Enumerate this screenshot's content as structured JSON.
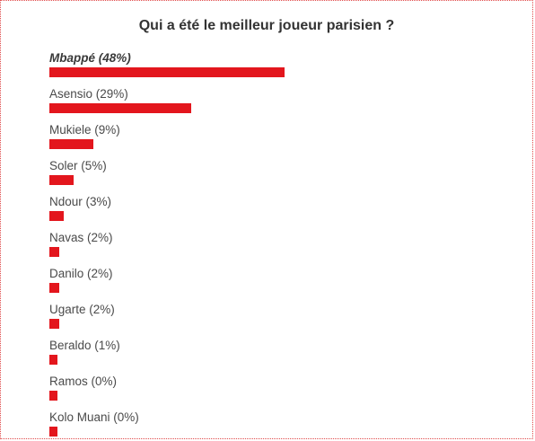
{
  "poll": {
    "title": "Qui a été le meilleur joueur parisien ?",
    "bar_color": "#e3161d",
    "options": [
      {
        "label": "Mbappé (48%)",
        "percent": 48,
        "leader": true
      },
      {
        "label": "Asensio (29%)",
        "percent": 29,
        "leader": false
      },
      {
        "label": "Mukiele (9%)",
        "percent": 9,
        "leader": false
      },
      {
        "label": "Soler (5%)",
        "percent": 5,
        "leader": false
      },
      {
        "label": "Ndour (3%)",
        "percent": 3,
        "leader": false
      },
      {
        "label": "Navas (2%)",
        "percent": 2,
        "leader": false
      },
      {
        "label": "Danilo (2%)",
        "percent": 2,
        "leader": false
      },
      {
        "label": "Ugarte (2%)",
        "percent": 2,
        "leader": false
      },
      {
        "label": "Beraldo (1%)",
        "percent": 1,
        "leader": false
      },
      {
        "label": "Ramos (0%)",
        "percent": 0,
        "leader": false
      },
      {
        "label": "Kolo Muani (0%)",
        "percent": 0,
        "leader": false
      }
    ]
  }
}
